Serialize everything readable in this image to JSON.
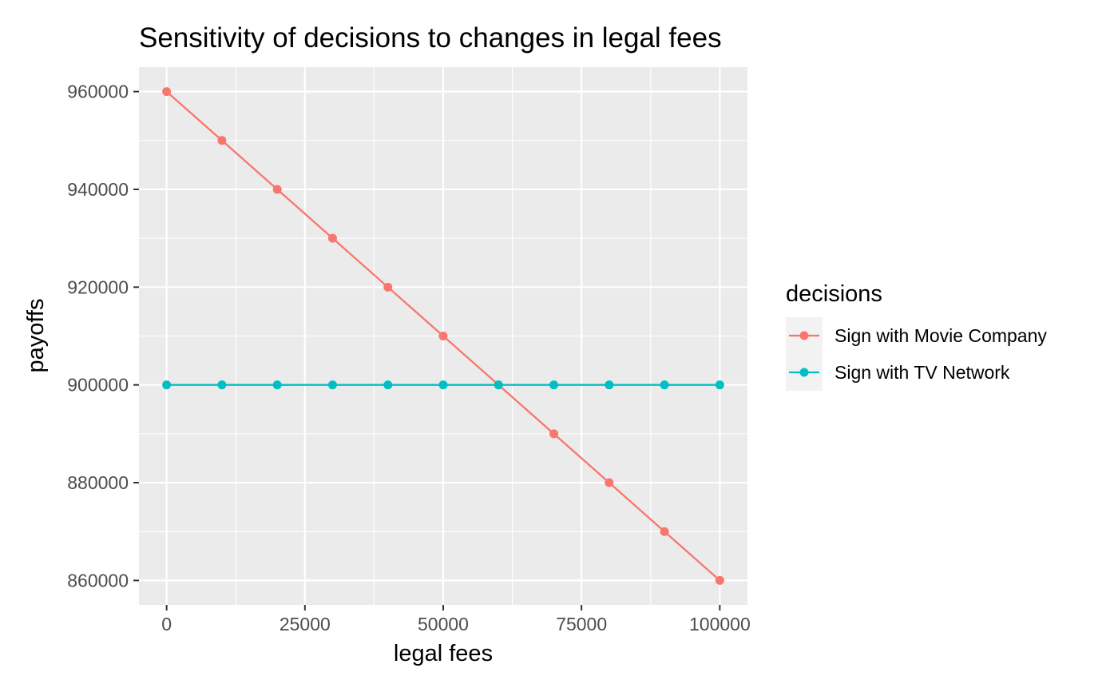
{
  "chart_data": {
    "type": "line",
    "title": "Sensitivity of decisions to changes in legal fees",
    "xlabel": "legal fees",
    "ylabel": "payoffs",
    "x": [
      0,
      10000,
      20000,
      30000,
      40000,
      50000,
      60000,
      70000,
      80000,
      90000,
      100000
    ],
    "xlim": [
      -5000,
      105000
    ],
    "ylim": [
      855000,
      965000
    ],
    "x_ticks": [
      0,
      25000,
      50000,
      75000,
      100000
    ],
    "x_tick_labels": [
      "0",
      "25000",
      "50000",
      "75000",
      "100000"
    ],
    "y_ticks": [
      860000,
      880000,
      900000,
      920000,
      940000,
      960000
    ],
    "y_tick_labels": [
      "860000",
      "880000",
      "900000",
      "920000",
      "940000",
      "960000"
    ],
    "grid": true,
    "legend": {
      "title": "decisions",
      "position": "right"
    },
    "series": [
      {
        "name": "Sign with Movie Company",
        "color": "#F8766D",
        "values": [
          960000,
          950000,
          940000,
          930000,
          920000,
          910000,
          900000,
          890000,
          880000,
          870000,
          860000
        ]
      },
      {
        "name": "Sign with TV Network",
        "color": "#00BFC4",
        "values": [
          900000,
          900000,
          900000,
          900000,
          900000,
          900000,
          900000,
          900000,
          900000,
          900000,
          900000
        ]
      }
    ],
    "panel_background": "#EBEBEB",
    "grid_color": "#FFFFFF",
    "legend_key_background": "#F2F2F2"
  }
}
